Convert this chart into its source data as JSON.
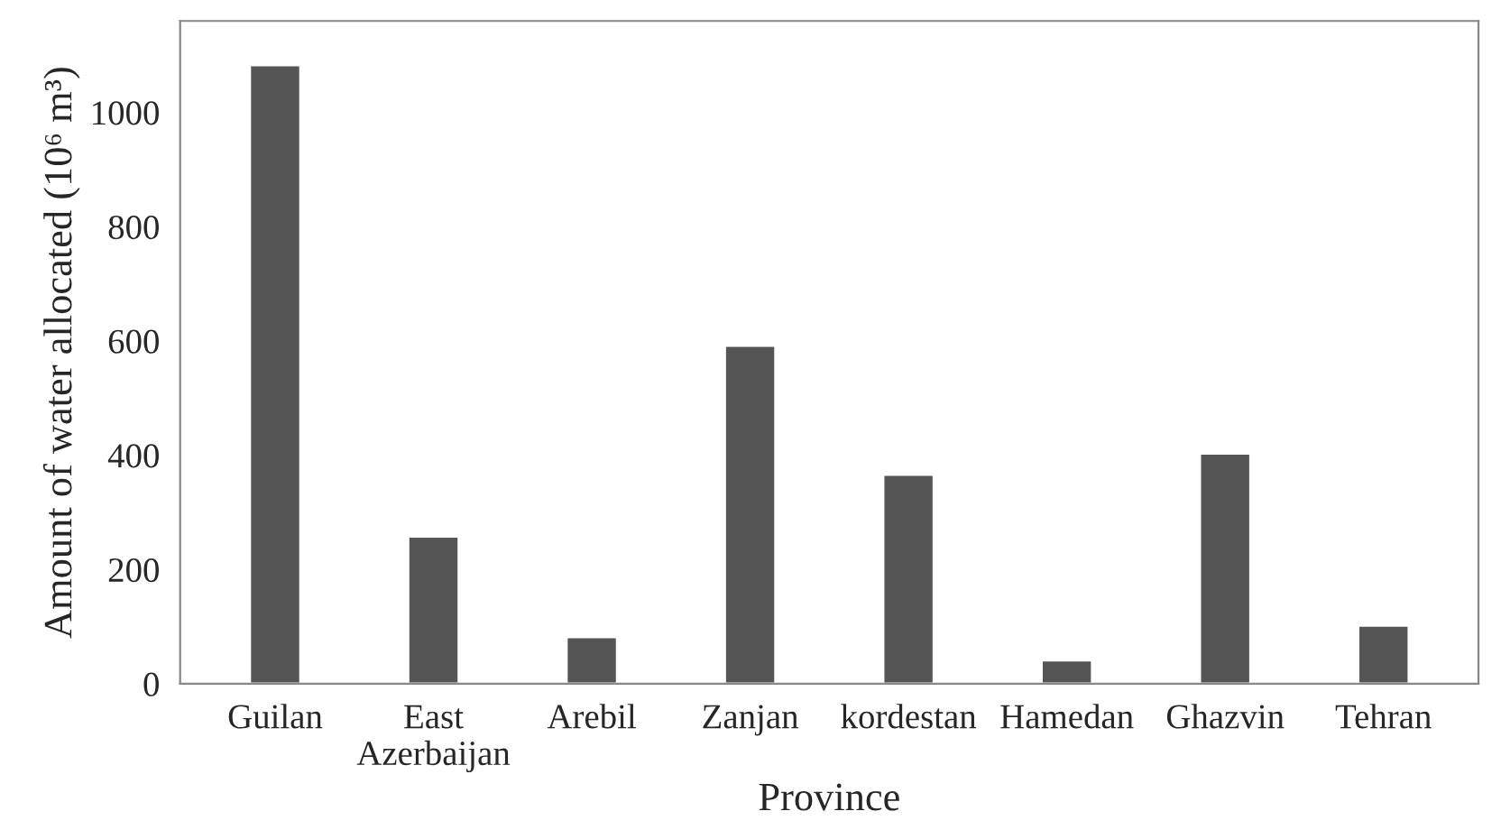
{
  "chart_data": {
    "type": "bar",
    "xlabel": "Province",
    "ylabel": "Amount of water allocated (10⁶ m³)",
    "categories": [
      "Guilan",
      "East\nAzerbaijan",
      "Arebil",
      "Zanjan",
      "kordestan",
      "Hamedan",
      "Ghazvin",
      "Tehran"
    ],
    "values": [
      1083,
      258,
      82,
      592,
      366,
      41,
      403,
      102
    ],
    "color": "#555555",
    "ylim": [
      0,
      1160
    ],
    "yticks": [
      0,
      200,
      400,
      600,
      800,
      1000
    ],
    "grid": false
  }
}
